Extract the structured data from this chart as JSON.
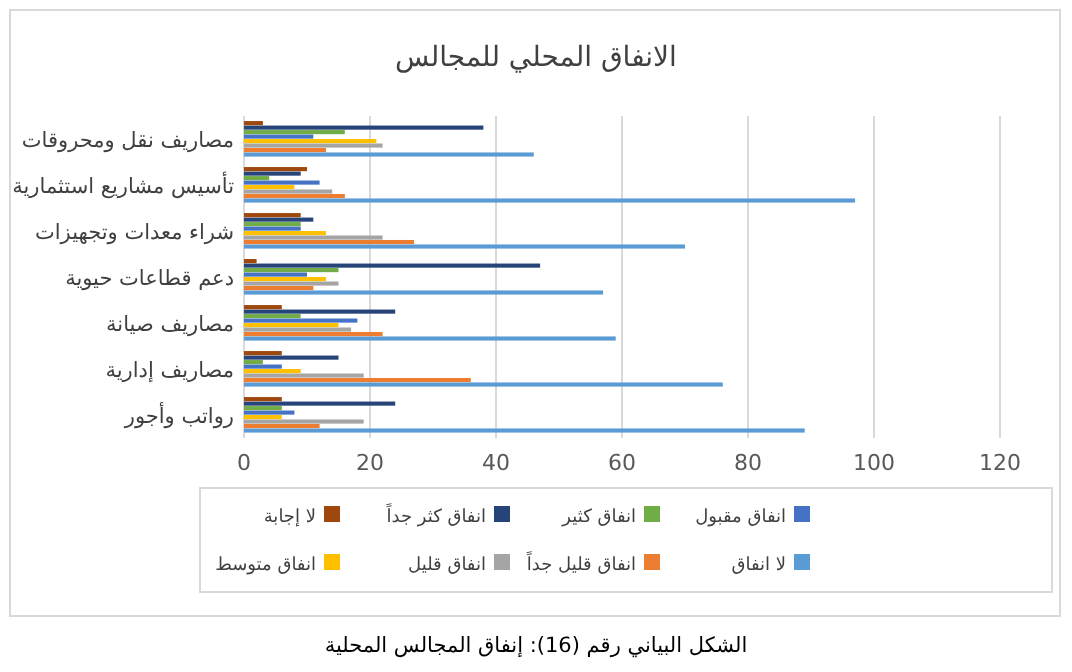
{
  "chart_data": {
    "type": "bar",
    "orientation": "horizontal",
    "title": "الانفاق المحلي للمجالس",
    "categories": [
      "مصاريف نقل ومحروقات",
      "تأسيس مشاريع استثمارية",
      "شراء معدات وتجهيزات",
      "دعم قطاعات حيوية",
      "مصاريف صيانة",
      "مصاريف إدارية",
      "رواتب وأجور"
    ],
    "series": [
      {
        "name": "لا انفاق",
        "color": "#5b9bd5",
        "values": [
          46,
          97,
          70,
          57,
          59,
          76,
          89
        ]
      },
      {
        "name": "انفاق قليل جداً",
        "color": "#ed7d31",
        "values": [
          13,
          16,
          27,
          11,
          22,
          36,
          12
        ]
      },
      {
        "name": "انفاق قليل",
        "color": "#a5a5a5",
        "values": [
          22,
          14,
          22,
          15,
          17,
          19,
          19
        ]
      },
      {
        "name": "انفاق متوسط",
        "color": "#ffc000",
        "values": [
          21,
          8,
          13,
          13,
          15,
          9,
          6
        ]
      },
      {
        "name": "انفاق مقبول",
        "color": "#4472c4",
        "values": [
          11,
          12,
          9,
          10,
          18,
          6,
          8
        ]
      },
      {
        "name": "انفاق كثير",
        "color": "#70ad47",
        "values": [
          16,
          4,
          9,
          15,
          9,
          3,
          6
        ]
      },
      {
        "name": "انفاق كثر جداً",
        "color": "#264478",
        "values": [
          38,
          9,
          11,
          47,
          24,
          15,
          24
        ]
      },
      {
        "name": "لا إجابة",
        "color": "#9e480e",
        "values": [
          3,
          10,
          9,
          2,
          6,
          6,
          6
        ]
      }
    ],
    "xlim": [
      0,
      120
    ],
    "xticks": [
      0,
      20,
      40,
      60,
      80,
      100,
      120
    ],
    "grid": "x",
    "legend": "bottom",
    "annotations": [
      "الشكل البياني رقم (16): إنفاق المجالس المحلية"
    ]
  }
}
